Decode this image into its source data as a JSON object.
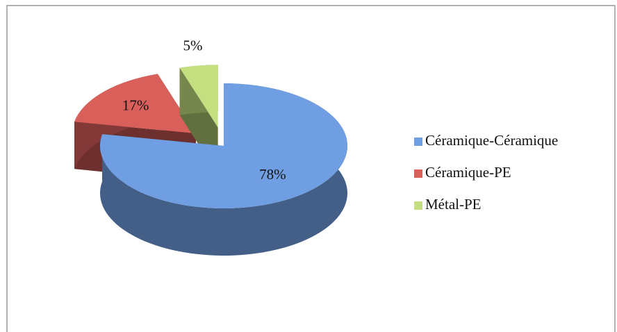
{
  "chart_data": {
    "type": "pie",
    "categories": [
      "Céramique-Céramique",
      "Céramique-PE",
      "Métal-PE"
    ],
    "values": [
      78,
      17,
      5
    ],
    "value_labels": [
      "78%",
      "17%",
      "5%"
    ],
    "colors": [
      "#6f9fe2",
      "#d95f5b",
      "#c4df7f"
    ],
    "legend": "right"
  }
}
